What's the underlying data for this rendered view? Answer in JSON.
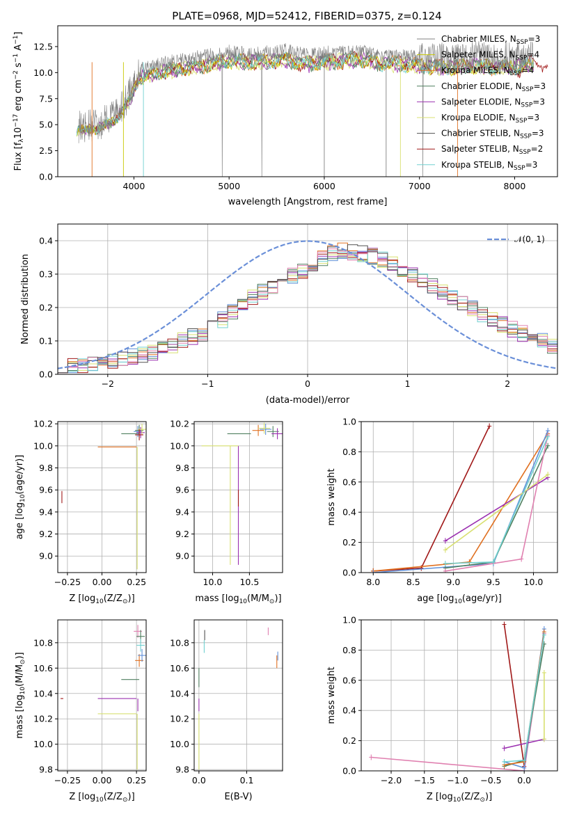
{
  "figure": {
    "title": "PLATE=0968, MJD=52412, FIBERID=0375, z=0.124"
  },
  "colors": {
    "Chabrier MILES": "#808080",
    "Salpeter MILES": "#c8c800",
    "Kroupa MILES": "#e07020",
    "Chabrier ELODIE": "#4f7f5f",
    "Salpeter ELODIE": "#9b30b0",
    "Kroupa ELODIE": "#d8e070",
    "Chabrier STELIB": "#505050",
    "Salpeter STELIB": "#a01818",
    "Kroupa STELIB": "#70d0d0",
    "extra_blue": "#6090d8",
    "extra_pink": "#e080b0",
    "normal_curve": "#6a8fd8"
  },
  "chart_data": [
    {
      "id": "spectrum",
      "type": "line",
      "title": "PLATE=0968, MJD=52412, FIBERID=0375, z=0.124",
      "xlabel_main": "wavelength [Angstrom, rest frame]",
      "ylabel_main": "Flux [f",
      "ylabel_parts": [
        "Flux [f",
        "λ",
        "10",
        "−17",
        " erg cm",
        "−2",
        " s",
        "−1",
        " A",
        "−1",
        "]"
      ],
      "xlim": [
        3200,
        8450
      ],
      "ylim": [
        0,
        14.5
      ],
      "xticks": [
        4000,
        5000,
        6000,
        7000,
        8000
      ],
      "yticks": [
        0.0,
        2.5,
        5.0,
        7.5,
        10.0,
        12.5
      ],
      "ytick_labels": [
        "0.0",
        "2.5",
        "5.0",
        "7.5",
        "10.0",
        "12.5"
      ],
      "continuum": {
        "x": [
          3400,
          3600,
          3800,
          3950,
          4050,
          4200,
          4400,
          4600,
          4800,
          5000,
          5200,
          5400,
          5600,
          5800,
          6000,
          6200,
          6400,
          6600,
          6800,
          7000,
          7200,
          7400,
          7600,
          7800,
          8000,
          8200
        ],
        "y": [
          4.8,
          4.9,
          5.8,
          7.8,
          10.2,
          10.6,
          11.0,
          11.3,
          11.6,
          12.0,
          11.8,
          11.9,
          12.1,
          11.6,
          11.8,
          12.0,
          12.1,
          11.6,
          11.7,
          11.5,
          11.3,
          11.3,
          11.5,
          11.2,
          11.4,
          11.5
        ]
      },
      "legend": [
        {
          "text": "Chabrier MILES, N",
          "sub": "SSP",
          "suffix": "=3"
        },
        {
          "text": "Salpeter MILES, N",
          "sub": "SSP",
          "suffix": "=4"
        },
        {
          "text": "Kroupa MILES, N",
          "sub": "SSP",
          "suffix": "=4"
        },
        {
          "text": "Chabrier ELODIE, N",
          "sub": "SSP",
          "suffix": "=3"
        },
        {
          "text": "Salpeter ELODIE, N",
          "sub": "SSP",
          "suffix": "=3"
        },
        {
          "text": "Kroupa ELODIE, N",
          "sub": "SSP",
          "suffix": "=3"
        },
        {
          "text": "Chabrier STELIB, N",
          "sub": "SSP",
          "suffix": "=3"
        },
        {
          "text": "Salpeter STELIB, N",
          "sub": "SSP",
          "suffix": "=2"
        },
        {
          "text": "Kroupa STELIB, N",
          "sub": "SSP",
          "suffix": "=3"
        }
      ]
    },
    {
      "id": "residuals",
      "type": "line",
      "xlabel": "(data-model)/error",
      "ylabel": "Normed distribution",
      "xlim": [
        -2.5,
        2.5
      ],
      "ylim": [
        0,
        0.45
      ],
      "xticks": [
        -2,
        -1,
        0,
        1,
        2
      ],
      "xtick_labels": [
        "−2",
        "−1",
        "0",
        "1",
        "2"
      ],
      "yticks": [
        0.0,
        0.1,
        0.2,
        0.3,
        0.4
      ],
      "ytick_labels": [
        "0.0",
        "0.1",
        "0.2",
        "0.3",
        "0.4"
      ],
      "legend": "𝒩(0, 1)",
      "histogram_shape": {
        "x": [
          -2.5,
          -2.0,
          -1.5,
          -1.0,
          -0.5,
          0.0,
          0.3,
          0.6,
          1.0,
          1.5,
          2.0,
          2.5
        ],
        "y": [
          0.02,
          0.035,
          0.07,
          0.13,
          0.24,
          0.32,
          0.37,
          0.36,
          0.31,
          0.22,
          0.14,
          0.08
        ]
      }
    },
    {
      "id": "age_vs_Z",
      "type": "scatter",
      "xlabel": "Z [log",
      "xlabel_parts": [
        "Z [log",
        "10",
        "(Z/Z",
        "⊙",
        ")]"
      ],
      "ylabel_parts": [
        "age  [log",
        "10",
        "(age/yr)]"
      ],
      "xlim": [
        -0.32,
        0.32
      ],
      "ylim": [
        8.85,
        10.22
      ],
      "xticks": [
        -0.25,
        0.0,
        0.25
      ],
      "xtick_labels": [
        "−0.25",
        "0.00",
        "0.25"
      ],
      "yticks": [
        9.0,
        9.2,
        9.4,
        9.6,
        9.8,
        10.0,
        10.2
      ],
      "ytick_labels": [
        "9.0",
        "9.2",
        "9.4",
        "9.6",
        "9.8",
        "10.0",
        "10.2"
      ]
    },
    {
      "id": "age_vs_mass",
      "type": "scatter",
      "xlabel_parts": [
        "mass [log",
        "10",
        "(M/M",
        "⊙",
        ")]"
      ],
      "xlim": [
        9.75,
        10.95
      ],
      "ylim": [
        8.85,
        10.22
      ],
      "xticks": [
        10.0,
        10.5
      ],
      "xtick_labels": [
        "10.0",
        "10.5"
      ],
      "yticks": [
        9.0,
        9.2,
        9.4,
        9.6,
        9.8,
        10.0,
        10.2
      ],
      "ytick_labels": [
        "9.0",
        "9.2",
        "9.4",
        "9.6",
        "9.8",
        "10.0",
        "10.2"
      ]
    },
    {
      "id": "weight_vs_age",
      "type": "line",
      "xlabel_parts": [
        "age  [log",
        "10",
        "(age/yr)]"
      ],
      "ylabel": "mass weight",
      "xlim": [
        7.85,
        10.3
      ],
      "ylim": [
        0,
        1
      ],
      "xticks": [
        8.0,
        8.5,
        9.0,
        9.5,
        10.0
      ],
      "xtick_labels": [
        "8.0",
        "8.5",
        "9.0",
        "9.5",
        "10.0"
      ],
      "yticks": [
        0.0,
        0.2,
        0.4,
        0.6,
        0.8,
        1.0
      ],
      "ytick_labels": [
        "0.0",
        "0.2",
        "0.4",
        "0.6",
        "0.8",
        "1.0"
      ],
      "series": [
        {
          "color": "#a01818",
          "x": [
            8.0,
            8.6,
            9.45
          ],
          "y": [
            0.01,
            0.03,
            0.97
          ]
        },
        {
          "color": "#e07020",
          "x": [
            8.0,
            9.2,
            10.18
          ],
          "y": [
            0.01,
            0.07,
            0.92
          ]
        },
        {
          "color": "#6090d8",
          "x": [
            8.0,
            9.5,
            10.18
          ],
          "y": [
            0.0,
            0.06,
            0.94
          ]
        },
        {
          "color": "#4f7f5f",
          "x": [
            8.9,
            9.5,
            10.18
          ],
          "y": [
            0.03,
            0.07,
            0.84
          ]
        },
        {
          "color": "#9b30b0",
          "x": [
            8.9,
            10.18
          ],
          "y": [
            0.21,
            0.63
          ]
        },
        {
          "color": "#d8e070",
          "x": [
            8.9,
            10.18
          ],
          "y": [
            0.15,
            0.65
          ]
        },
        {
          "color": "#e080b0",
          "x": [
            8.9,
            9.85,
            10.18
          ],
          "y": [
            0.01,
            0.09,
            0.91
          ]
        },
        {
          "color": "#70d0d0",
          "x": [
            8.9,
            9.5,
            10.18
          ],
          "y": [
            0.06,
            0.07,
            0.9
          ]
        }
      ]
    },
    {
      "id": "mass_vs_Z",
      "type": "scatter",
      "xlabel_parts": [
        "Z [log",
        "10",
        "(Z/Z",
        "⊙",
        ")]"
      ],
      "ylabel_parts": [
        "mass [log",
        "10",
        "(M/M",
        "⊙",
        ")]"
      ],
      "xlim": [
        -0.32,
        0.32
      ],
      "ylim": [
        9.79,
        10.98
      ],
      "xticks": [
        -0.25,
        0.0,
        0.25
      ],
      "xtick_labels": [
        "−0.25",
        "0.00",
        "0.25"
      ],
      "yticks": [
        9.8,
        10.0,
        10.2,
        10.4,
        10.6,
        10.8
      ],
      "ytick_labels": [
        "9.8",
        "10.0",
        "10.2",
        "10.4",
        "10.6",
        "10.8"
      ]
    },
    {
      "id": "mass_vs_ebv",
      "type": "scatter",
      "xlabel": "E(B-V)",
      "xlim": [
        -0.01,
        0.175
      ],
      "ylim": [
        9.79,
        10.98
      ],
      "xticks": [
        0.0,
        0.1
      ],
      "xtick_labels": [
        "0.0",
        "0.1"
      ],
      "yticks": [
        9.8,
        10.0,
        10.2,
        10.4,
        10.6,
        10.8
      ],
      "ytick_labels": [
        "9.8",
        "10.0",
        "10.2",
        "10.4",
        "10.6",
        "10.8"
      ]
    },
    {
      "id": "weight_vs_Z",
      "type": "line",
      "xlabel_parts": [
        "Z [log",
        "10",
        "(Z/Z",
        "⊙",
        ")]"
      ],
      "ylabel": "mass weight",
      "xlim": [
        -2.45,
        0.5
      ],
      "ylim": [
        0,
        1
      ],
      "xticks": [
        -2.0,
        -1.5,
        -1.0,
        -0.5,
        0.0
      ],
      "xtick_labels": [
        "−2.0",
        "−1.5",
        "−1.0",
        "−0.5",
        "0.0"
      ],
      "yticks": [
        0.0,
        0.2,
        0.4,
        0.6,
        0.8,
        1.0
      ],
      "ytick_labels": [
        "0.0",
        "0.2",
        "0.4",
        "0.6",
        "0.8",
        "1.0"
      ],
      "series": [
        {
          "color": "#a01818",
          "x": [
            -0.3,
            0.0
          ],
          "y": [
            0.97,
            0.03
          ]
        },
        {
          "color": "#e080b0",
          "x": [
            -2.3,
            0.0,
            0.3
          ],
          "y": [
            0.09,
            0.0,
            0.91
          ]
        },
        {
          "color": "#6090d8",
          "x": [
            -0.3,
            0.0,
            0.3
          ],
          "y": [
            0.06,
            0.02,
            0.94
          ]
        },
        {
          "color": "#4f7f5f",
          "x": [
            -0.3,
            0.0,
            0.3
          ],
          "y": [
            0.03,
            0.07,
            0.84
          ]
        },
        {
          "color": "#e07020",
          "x": [
            -0.3,
            0.0,
            0.3
          ],
          "y": [
            0.04,
            0.06,
            0.92
          ]
        },
        {
          "color": "#9b30b0",
          "x": [
            -0.3,
            0.3
          ],
          "y": [
            0.15,
            0.21
          ]
        },
        {
          "color": "#d8e070",
          "x": [
            0.3,
            0.3
          ],
          "y": [
            0.21,
            0.65
          ]
        },
        {
          "color": "#70d0d0",
          "x": [
            -0.3,
            0.0,
            0.3
          ],
          "y": [
            0.06,
            0.07,
            0.9
          ]
        }
      ]
    }
  ]
}
